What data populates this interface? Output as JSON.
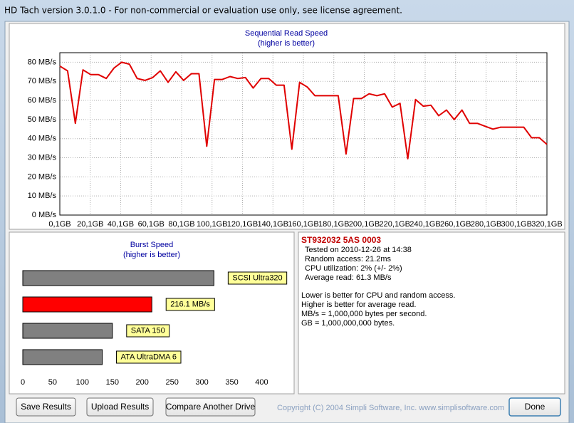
{
  "window": {
    "title": "HD Tach version 3.0.1.0  - For non-commercial or evaluation use only, see license agreement."
  },
  "chart_data": [
    {
      "type": "line",
      "title": "Sequential Read Speed",
      "subtitle": "(higher is better)",
      "color": "#e00000",
      "grid": true,
      "x": [
        0.1,
        5.2,
        10.3,
        15.3,
        20.4,
        25.5,
        30.6,
        35.7,
        40.7,
        45.8,
        50.9,
        56,
        61.1,
        66.1,
        71.2,
        76.3,
        81.4,
        86.5,
        91.5,
        96.6,
        101.7,
        106.8,
        111.9,
        116.9,
        122,
        127.1,
        132.2,
        137.3,
        142.3,
        147.4,
        152.5,
        157.6,
        162.7,
        167.7,
        172.8,
        177.9,
        183,
        188.1,
        193.1,
        198.2,
        203.3,
        208.4,
        213.5,
        218.5,
        223.6,
        228.7,
        233.8,
        238.9,
        243.9,
        249,
        254.1,
        259.2,
        264.3,
        269.3,
        274.4,
        279.5,
        284.6,
        289.7,
        294.7,
        299.8,
        304.9,
        310,
        315.1,
        320.1
      ],
      "values": [
        78,
        75.5,
        48,
        76,
        73.5,
        73.5,
        71.5,
        77,
        80,
        79,
        71.5,
        70.5,
        72,
        75.5,
        69.5,
        75,
        70.5,
        74,
        74,
        36,
        71,
        71,
        72.5,
        71.5,
        72,
        66.5,
        71.5,
        71.5,
        68,
        68,
        34.5,
        69.5,
        67,
        62.5,
        62.5,
        62.5,
        62.5,
        32,
        61,
        61,
        63.5,
        62.5,
        63.5,
        56.5,
        58.5,
        29.5,
        60.5,
        57,
        57.5,
        52,
        55,
        50,
        55,
        48,
        48,
        46.5,
        45,
        46,
        46,
        46,
        46,
        40.5,
        40.5,
        37
      ],
      "xlim": [
        0.1,
        320.1
      ],
      "xticks": [
        {
          "value": 0.1,
          "label": "0,1GB"
        },
        {
          "value": 20.1,
          "label": "20,1GB"
        },
        {
          "value": 40.1,
          "label": "40,1GB"
        },
        {
          "value": 60.1,
          "label": "60,1GB"
        },
        {
          "value": 80.1,
          "label": "80,1GB"
        },
        {
          "value": 100.1,
          "label": "100,1GB"
        },
        {
          "value": 120.1,
          "label": "120,1GB"
        },
        {
          "value": 140.1,
          "label": "140,1GB"
        },
        {
          "value": 160.1,
          "label": "160,1GB"
        },
        {
          "value": 180.1,
          "label": "180,1GB"
        },
        {
          "value": 200.1,
          "label": "200,1GB"
        },
        {
          "value": 220.1,
          "label": "220,1GB"
        },
        {
          "value": 240.1,
          "label": "240,1GB"
        },
        {
          "value": 260.1,
          "label": "260,1GB"
        },
        {
          "value": 280.1,
          "label": "280,1GB"
        },
        {
          "value": 300.1,
          "label": "300,1GB"
        },
        {
          "value": 320.1,
          "label": "320,1GB"
        }
      ],
      "ylim": [
        0,
        85
      ],
      "yticks": [
        {
          "value": 0,
          "label": "0 MB/s"
        },
        {
          "value": 10,
          "label": "10 MB/s"
        },
        {
          "value": 20,
          "label": "20 MB/s"
        },
        {
          "value": 30,
          "label": "30 MB/s"
        },
        {
          "value": 40,
          "label": "40 MB/s"
        },
        {
          "value": 50,
          "label": "50 MB/s"
        },
        {
          "value": 60,
          "label": "60 MB/s"
        },
        {
          "value": 70,
          "label": "70 MB/s"
        },
        {
          "value": 80,
          "label": "80 MB/s"
        }
      ]
    },
    {
      "type": "bar",
      "orientation": "horizontal",
      "title": "Burst Speed",
      "subtitle": "(higher is better)",
      "categories": [
        "SCSI Ultra320",
        null,
        "SATA 150",
        "ATA UltraDMA 6"
      ],
      "values": [
        320,
        216.1,
        150,
        133
      ],
      "value_labels": [
        null,
        "216.1 MB/s",
        null,
        null
      ],
      "colors": [
        "#808080",
        "#ff0000",
        "#808080",
        "#808080"
      ],
      "xlim": [
        0,
        440
      ],
      "xticks": [
        0,
        50,
        100,
        150,
        200,
        250,
        300,
        350,
        400
      ]
    }
  ],
  "info": {
    "drive": "ST932032 5AS 0003",
    "stats": [
      "Tested on 2010-12-26 at 14:38",
      "Random access: 21.2ms",
      "CPU utilization: 2% (+/- 2%)",
      "Average read: 61.3 MB/s"
    ],
    "notes": [
      "Lower is better for CPU and random access.",
      "Higher is better for average read.",
      "MB/s = 1,000,000 bytes per second.",
      "GB = 1,000,000,000 bytes."
    ]
  },
  "buttons": [
    "Save Results",
    "Upload Results",
    "Compare Another Drive",
    "Done"
  ],
  "copyright": "Copyright (C) 2004 Simpli Software, Inc. www.simplisoftware.com"
}
